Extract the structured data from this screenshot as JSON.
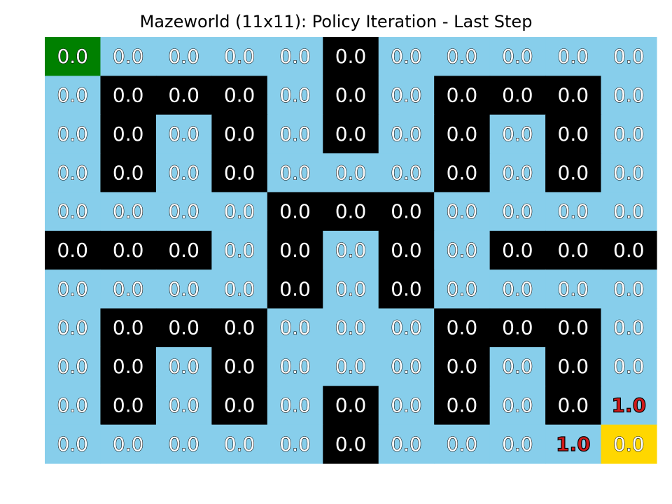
{
  "chart_data": {
    "type": "heatmap",
    "title": "Mazeworld (11x11): Policy Iteration - Last Step",
    "rows": 11,
    "cols": 11,
    "colors": {
      "open": "#87ceeb",
      "wall": "#000000",
      "start": "#008000",
      "goal": "#ffd700",
      "text_open": "#ffffff",
      "text_outline": "#000000",
      "text_wall": "#ffffff",
      "text_reward": "#d11a1a"
    },
    "legend_codes": {
      "o": "open",
      "w": "wall",
      "s": "start",
      "g": "goal"
    },
    "cell_types": [
      [
        "s",
        "o",
        "o",
        "o",
        "o",
        "w",
        "o",
        "o",
        "o",
        "o",
        "o"
      ],
      [
        "o",
        "w",
        "w",
        "w",
        "o",
        "w",
        "o",
        "w",
        "w",
        "w",
        "o"
      ],
      [
        "o",
        "w",
        "o",
        "w",
        "o",
        "w",
        "o",
        "w",
        "o",
        "w",
        "o"
      ],
      [
        "o",
        "w",
        "o",
        "w",
        "o",
        "o",
        "o",
        "w",
        "o",
        "w",
        "o"
      ],
      [
        "o",
        "o",
        "o",
        "o",
        "w",
        "w",
        "w",
        "o",
        "o",
        "o",
        "o"
      ],
      [
        "w",
        "w",
        "w",
        "o",
        "w",
        "o",
        "w",
        "o",
        "w",
        "w",
        "w"
      ],
      [
        "o",
        "o",
        "o",
        "o",
        "w",
        "o",
        "w",
        "o",
        "o",
        "o",
        "o"
      ],
      [
        "o",
        "w",
        "w",
        "w",
        "o",
        "o",
        "o",
        "w",
        "w",
        "w",
        "o"
      ],
      [
        "o",
        "w",
        "o",
        "w",
        "o",
        "o",
        "o",
        "w",
        "o",
        "w",
        "o"
      ],
      [
        "o",
        "w",
        "o",
        "w",
        "o",
        "w",
        "o",
        "w",
        "o",
        "w",
        "o"
      ],
      [
        "o",
        "o",
        "o",
        "o",
        "o",
        "w",
        "o",
        "o",
        "o",
        "o",
        "g"
      ]
    ],
    "values": [
      [
        0.0,
        0.0,
        0.0,
        0.0,
        0.0,
        0.0,
        0.0,
        0.0,
        0.0,
        0.0,
        0.0
      ],
      [
        0.0,
        0.0,
        0.0,
        0.0,
        0.0,
        0.0,
        0.0,
        0.0,
        0.0,
        0.0,
        0.0
      ],
      [
        0.0,
        0.0,
        0.0,
        0.0,
        0.0,
        0.0,
        0.0,
        0.0,
        0.0,
        0.0,
        0.0
      ],
      [
        0.0,
        0.0,
        0.0,
        0.0,
        0.0,
        0.0,
        0.0,
        0.0,
        0.0,
        0.0,
        0.0
      ],
      [
        0.0,
        0.0,
        0.0,
        0.0,
        0.0,
        0.0,
        0.0,
        0.0,
        0.0,
        0.0,
        0.0
      ],
      [
        0.0,
        0.0,
        0.0,
        0.0,
        0.0,
        0.0,
        0.0,
        0.0,
        0.0,
        0.0,
        0.0
      ],
      [
        0.0,
        0.0,
        0.0,
        0.0,
        0.0,
        0.0,
        0.0,
        0.0,
        0.0,
        0.0,
        0.0
      ],
      [
        0.0,
        0.0,
        0.0,
        0.0,
        0.0,
        0.0,
        0.0,
        0.0,
        0.0,
        0.0,
        0.0
      ],
      [
        0.0,
        0.0,
        0.0,
        0.0,
        0.0,
        0.0,
        0.0,
        0.0,
        0.0,
        0.0,
        0.0
      ],
      [
        0.0,
        0.0,
        0.0,
        0.0,
        0.0,
        0.0,
        0.0,
        0.0,
        0.0,
        0.0,
        1.0
      ],
      [
        0.0,
        0.0,
        0.0,
        0.0,
        0.0,
        0.0,
        0.0,
        0.0,
        0.0,
        1.0,
        0.0
      ]
    ],
    "highlighted_cells": [
      [
        9,
        10
      ],
      [
        10,
        9
      ]
    ]
  }
}
